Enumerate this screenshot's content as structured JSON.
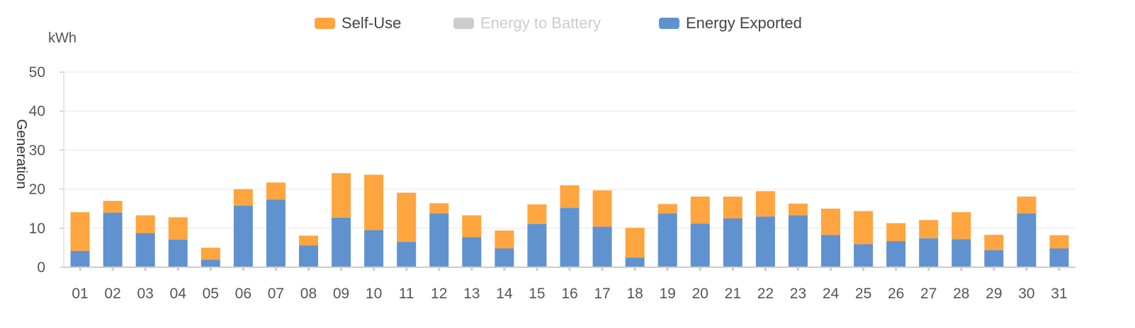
{
  "chart_data": {
    "type": "bar",
    "stacked": true,
    "unit": "kWh",
    "ylabel": "Generation",
    "ylim": [
      0,
      50
    ],
    "yticks": [
      0,
      10,
      20,
      30,
      40,
      50
    ],
    "grid": true,
    "legend_position": "top-center",
    "categories": [
      "01",
      "02",
      "03",
      "04",
      "05",
      "06",
      "07",
      "08",
      "09",
      "10",
      "11",
      "12",
      "13",
      "14",
      "15",
      "16",
      "17",
      "18",
      "19",
      "20",
      "21",
      "22",
      "23",
      "24",
      "25",
      "26",
      "27",
      "28",
      "29",
      "30",
      "31"
    ],
    "legend": [
      {
        "name": "Self-Use",
        "color": "#ffa53f",
        "active": true
      },
      {
        "name": "Energy to Battery",
        "color": "#cccccc",
        "active": false
      },
      {
        "name": "Energy Exported",
        "color": "#6092cf",
        "active": true
      }
    ],
    "series": [
      {
        "name": "Energy Exported",
        "color": "#6092cf",
        "values": [
          4.2,
          14.0,
          8.7,
          7.1,
          1.9,
          15.8,
          17.3,
          5.6,
          12.7,
          9.5,
          6.5,
          13.8,
          7.7,
          4.8,
          11.1,
          15.2,
          10.4,
          2.5,
          13.8,
          11.2,
          12.5,
          13.0,
          13.3,
          8.3,
          5.9,
          6.7,
          7.4,
          7.2,
          4.4,
          13.8,
          4.8
        ]
      },
      {
        "name": "Energy to Battery",
        "color": "#cccccc",
        "values": [
          0,
          0,
          0,
          0,
          0,
          0,
          0,
          0,
          0,
          0,
          0,
          0,
          0,
          0,
          0,
          0,
          0,
          0,
          0,
          0,
          0,
          0,
          0,
          0,
          0,
          0,
          0,
          0,
          0,
          0,
          0
        ]
      },
      {
        "name": "Self-Use",
        "color": "#ffa53f",
        "values": [
          9.9,
          3.0,
          4.6,
          5.7,
          3.1,
          4.2,
          4.4,
          2.5,
          11.4,
          14.2,
          12.6,
          2.6,
          5.6,
          4.6,
          5.0,
          5.8,
          9.3,
          7.6,
          2.4,
          6.9,
          5.6,
          6.5,
          3.0,
          6.7,
          8.5,
          4.6,
          4.7,
          6.9,
          3.9,
          4.3,
          3.4
        ]
      }
    ]
  }
}
